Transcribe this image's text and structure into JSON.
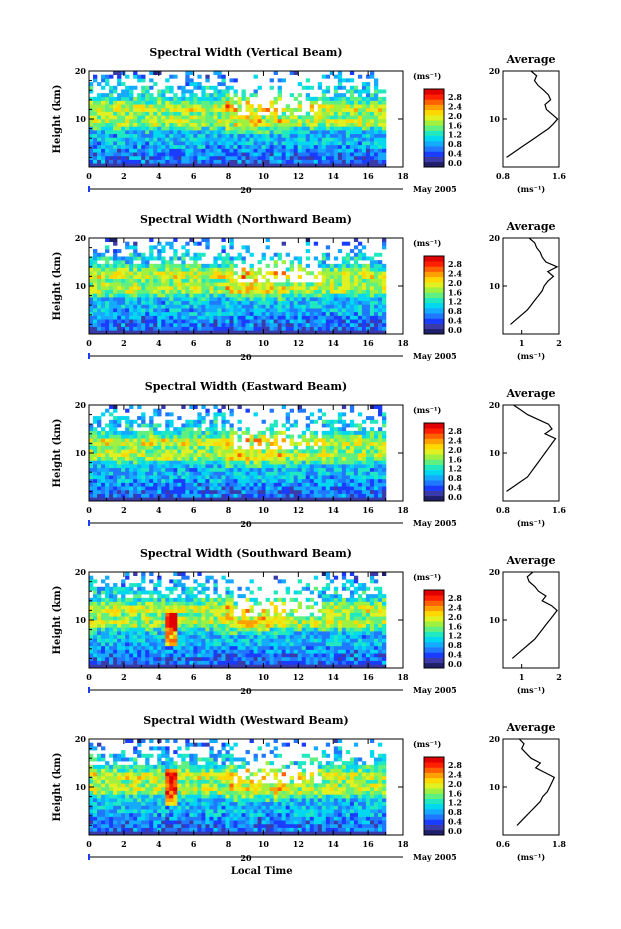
{
  "colorbar_colors": [
    "#20206a",
    "#3a3aa8",
    "#1a3cff",
    "#1f78ff",
    "#14aaff",
    "#00d8f0",
    "#20e8c0",
    "#60f080",
    "#a0f040",
    "#e0f020",
    "#ffd800",
    "#ffa000",
    "#ff6000",
    "#ff2000",
    "#e00000"
  ],
  "xlabel": "Local Time",
  "date_label": "20",
  "month_label": "May 2005",
  "unit_label": "(ms⁻¹)",
  "chart_data": [
    {
      "type": "heatmap",
      "title": "Spectral Width (Vertical Beam)",
      "xlabel": "",
      "ylabel": "Height (km)",
      "xlim": [
        0,
        18
      ],
      "ylim": [
        0,
        20
      ],
      "x_ticks": [
        "0",
        "2",
        "4",
        "6",
        "8",
        "10",
        "12",
        "14",
        "16",
        "18"
      ],
      "y_ticks": [
        "10",
        "20"
      ],
      "colorbar": {
        "label": "(ms⁻¹)",
        "ticks": [
          "0.0",
          "0.4",
          "0.8",
          "1.2",
          "1.6",
          "2.0",
          "2.4",
          "2.8"
        ]
      },
      "profile": {
        "title": "Average",
        "xlabel": "(ms⁻¹)",
        "xlim": [
          0.8,
          1.6
        ],
        "x_ticks": [
          "0.8",
          "1.6"
        ],
        "y_ticks": [
          "10",
          "20"
        ],
        "heights": [
          2,
          3,
          4,
          5,
          6,
          7,
          8,
          9,
          10,
          11,
          12,
          13,
          14,
          15,
          16,
          17,
          18,
          19,
          20
        ],
        "values": [
          0.85,
          0.95,
          1.05,
          1.15,
          1.25,
          1.35,
          1.45,
          1.52,
          1.58,
          1.5,
          1.42,
          1.4,
          1.48,
          1.45,
          1.38,
          1.3,
          1.25,
          1.28,
          1.2
        ]
      }
    },
    {
      "type": "heatmap",
      "title": "Spectral Width (Northward Beam)",
      "xlabel": "",
      "ylabel": "Height (km)",
      "xlim": [
        0,
        18
      ],
      "ylim": [
        0,
        20
      ],
      "x_ticks": [
        "0",
        "2",
        "4",
        "6",
        "8",
        "10",
        "12",
        "14",
        "16",
        "18"
      ],
      "y_ticks": [
        "10",
        "20"
      ],
      "colorbar": {
        "label": "(ms⁻¹)",
        "ticks": [
          "0.0",
          "0.4",
          "0.8",
          "1.2",
          "1.6",
          "2.0",
          "2.4",
          "2.8"
        ]
      },
      "profile": {
        "title": "Average",
        "xlabel": "(ms⁻¹)",
        "xlim": [
          0.5,
          2.0
        ],
        "x_ticks": [
          "1",
          "2"
        ],
        "y_ticks": [
          "10",
          "20"
        ],
        "heights": [
          2,
          3,
          4,
          5,
          6,
          7,
          8,
          9,
          10,
          11,
          12,
          13,
          14,
          15,
          16,
          17,
          18,
          19,
          20
        ],
        "values": [
          0.7,
          0.85,
          1.0,
          1.15,
          1.25,
          1.35,
          1.45,
          1.55,
          1.6,
          1.7,
          1.85,
          1.7,
          1.95,
          1.65,
          1.55,
          1.5,
          1.4,
          1.35,
          1.2
        ]
      }
    },
    {
      "type": "heatmap",
      "title": "Spectral Width (Eastward Beam)",
      "xlabel": "",
      "ylabel": "Height (km)",
      "xlim": [
        0,
        18
      ],
      "ylim": [
        0,
        20
      ],
      "x_ticks": [
        "0",
        "2",
        "4",
        "6",
        "8",
        "10",
        "12",
        "14",
        "16",
        "18"
      ],
      "y_ticks": [
        "10",
        "20"
      ],
      "colorbar": {
        "label": "(ms⁻¹)",
        "ticks": [
          "0.0",
          "0.4",
          "0.8",
          "1.2",
          "1.6",
          "2.0",
          "2.4",
          "2.8"
        ]
      },
      "profile": {
        "title": "Average",
        "xlabel": "(ms⁻¹)",
        "xlim": [
          0.8,
          1.6
        ],
        "x_ticks": [
          "0.8",
          "1.6"
        ],
        "y_ticks": [
          "10",
          "20"
        ],
        "heights": [
          2,
          3,
          4,
          5,
          6,
          7,
          8,
          9,
          10,
          11,
          12,
          13,
          14,
          15,
          16,
          17,
          18,
          19,
          20
        ],
        "values": [
          0.85,
          0.95,
          1.05,
          1.15,
          1.2,
          1.25,
          1.3,
          1.35,
          1.4,
          1.45,
          1.5,
          1.55,
          1.4,
          1.5,
          1.45,
          1.3,
          1.15,
          1.05,
          0.95
        ]
      }
    },
    {
      "type": "heatmap",
      "title": "Spectral Width (Southward Beam)",
      "xlabel": "",
      "ylabel": "Height (km)",
      "xlim": [
        0,
        18
      ],
      "ylim": [
        0,
        20
      ],
      "x_ticks": [
        "0",
        "2",
        "4",
        "6",
        "8",
        "10",
        "12",
        "14",
        "16",
        "18"
      ],
      "y_ticks": [
        "10",
        "20"
      ],
      "colorbar": {
        "label": "(ms⁻¹)",
        "ticks": [
          "0.0",
          "0.4",
          "0.8",
          "1.2",
          "1.6",
          "2.0",
          "2.4",
          "2.8"
        ]
      },
      "profile": {
        "title": "Average",
        "xlabel": "(ms⁻¹)",
        "xlim": [
          0.5,
          2.0
        ],
        "x_ticks": [
          "1",
          "2"
        ],
        "y_ticks": [
          "10",
          "20"
        ],
        "heights": [
          2,
          3,
          4,
          5,
          6,
          7,
          8,
          9,
          10,
          11,
          12,
          13,
          14,
          15,
          16,
          17,
          18,
          19,
          20
        ],
        "values": [
          0.75,
          0.9,
          1.05,
          1.2,
          1.35,
          1.45,
          1.55,
          1.65,
          1.75,
          1.85,
          1.95,
          1.8,
          1.55,
          1.65,
          1.45,
          1.35,
          1.2,
          1.15,
          1.3
        ]
      }
    },
    {
      "type": "heatmap",
      "title": "Spectral Width (Westward Beam)",
      "xlabel": "Local Time",
      "ylabel": "Height (km)",
      "xlim": [
        0,
        18
      ],
      "ylim": [
        0,
        20
      ],
      "x_ticks": [
        "0",
        "2",
        "4",
        "6",
        "8",
        "10",
        "12",
        "14",
        "16",
        "18"
      ],
      "y_ticks": [
        "10",
        "20"
      ],
      "colorbar": {
        "label": "(ms⁻¹)",
        "ticks": [
          "0.0",
          "0.4",
          "0.8",
          "1.2",
          "1.6",
          "2.0",
          "2.4",
          "2.8"
        ]
      },
      "profile": {
        "title": "Average",
        "xlabel": "(ms⁻¹)",
        "xlim": [
          0.6,
          1.8
        ],
        "x_ticks": [
          "0.6",
          "1.8"
        ],
        "y_ticks": [
          "10",
          "20"
        ],
        "heights": [
          2,
          3,
          4,
          5,
          6,
          7,
          8,
          9,
          10,
          11,
          12,
          13,
          14,
          15,
          16,
          17,
          18,
          19,
          20
        ],
        "values": [
          0.9,
          1.0,
          1.1,
          1.2,
          1.3,
          1.4,
          1.45,
          1.55,
          1.6,
          1.65,
          1.7,
          1.5,
          1.3,
          1.4,
          1.2,
          1.1,
          1.0,
          1.05,
          0.95
        ]
      }
    }
  ]
}
